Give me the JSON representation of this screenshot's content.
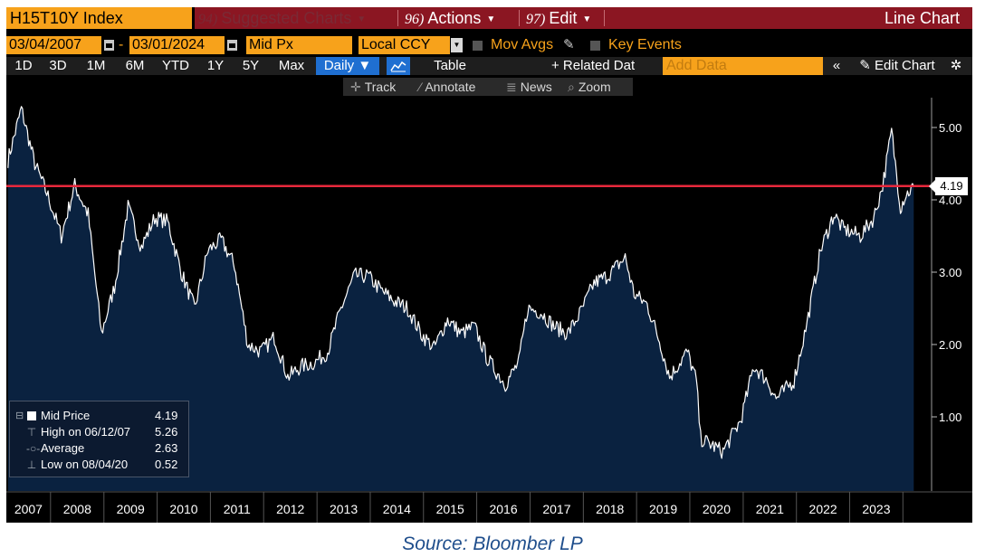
{
  "toolbar": {
    "ticker": "H15T10Y Index",
    "menus": [
      {
        "num": "94)",
        "label": "Suggested Charts",
        "color": "#7a2a35"
      },
      {
        "num": "96)",
        "label": "Actions",
        "color": "#ffffff"
      },
      {
        "num": "97)",
        "label": "Edit",
        "color": "#ffffff"
      }
    ],
    "chart_type": "Line Chart"
  },
  "settings": {
    "start_date": "03/04/2007",
    "dash": "-",
    "end_date": "03/01/2024",
    "field": "Mid Px",
    "currency": "Local CCY",
    "mov_avgs": "Mov Avgs",
    "key_events": "Key Events"
  },
  "periods": [
    "1D",
    "3D",
    "1M",
    "6M",
    "YTD",
    "1Y",
    "5Y",
    "Max"
  ],
  "frequency": "Daily ▼",
  "table_label": "Table",
  "related_data": "+ Related Dat",
  "add_data_placeholder": "Add Data",
  "collapse": "«",
  "edit_chart": "Edit Chart",
  "gear": "✲",
  "tools": [
    {
      "icon": "✛",
      "label": "Track"
    },
    {
      "icon": "⁄",
      "label": "Annotate"
    },
    {
      "icon": "≣",
      "label": "News"
    },
    {
      "icon": "⌕",
      "label": "Zoom"
    }
  ],
  "legend": {
    "mid_label": "Mid Price",
    "mid_value": "4.19",
    "high_label": "High on 06/12/07",
    "high_value": "5.26",
    "avg_label": "Average",
    "avg_value": "2.63",
    "low_label": "Low on 08/04/20",
    "low_value": "0.52"
  },
  "last_price_tag": "4.19",
  "source": "Source: Bloomber LP",
  "colors": {
    "accent_orange": "#f7a21b",
    "menu_red": "#8b1622",
    "area_fill": "#0a2240",
    "current_line": "#e8283c",
    "daily_blue": "#1f6fd1"
  },
  "chart_data": {
    "type": "area",
    "title": "",
    "xlabel": "",
    "ylabel": "",
    "y_axis_side": "right",
    "ylim": [
      0.0,
      5.5
    ],
    "y_ticks": [
      "1.00",
      "2.00",
      "3.00",
      "4.00",
      "5.00"
    ],
    "x_tick_labels": [
      "2007",
      "2008",
      "2009",
      "2010",
      "2011",
      "2012",
      "2013",
      "2014",
      "2015",
      "2016",
      "2017",
      "2018",
      "2019",
      "2020",
      "2021",
      "2022",
      "2023"
    ],
    "x_range": [
      "2007-03-04",
      "2024-03-01"
    ],
    "reference_line": 4.19,
    "series": [
      {
        "name": "Mid Price",
        "x": [
          "2007-03",
          "2007-06",
          "2007-09",
          "2007-12",
          "2008-03",
          "2008-06",
          "2008-09",
          "2008-12",
          "2009-03",
          "2009-06",
          "2009-09",
          "2009-12",
          "2010-03",
          "2010-06",
          "2010-09",
          "2010-12",
          "2011-03",
          "2011-06",
          "2011-09",
          "2011-12",
          "2012-03",
          "2012-06",
          "2012-09",
          "2012-12",
          "2013-03",
          "2013-06",
          "2013-09",
          "2013-12",
          "2014-03",
          "2014-06",
          "2014-09",
          "2014-12",
          "2015-03",
          "2015-06",
          "2015-09",
          "2015-12",
          "2016-03",
          "2016-07",
          "2016-10",
          "2016-12",
          "2017-03",
          "2017-06",
          "2017-09",
          "2017-12",
          "2018-03",
          "2018-06",
          "2018-10",
          "2018-12",
          "2019-03",
          "2019-06",
          "2019-08",
          "2019-12",
          "2020-02",
          "2020-03",
          "2020-08",
          "2020-12",
          "2021-03",
          "2021-06",
          "2021-08",
          "2021-12",
          "2022-03",
          "2022-06",
          "2022-09",
          "2022-11",
          "2023-03",
          "2023-06",
          "2023-08",
          "2023-10",
          "2023-12",
          "2024-01",
          "2024-03"
        ],
        "y": [
          4.55,
          5.26,
          4.5,
          4.05,
          3.5,
          4.2,
          3.8,
          2.15,
          2.8,
          3.9,
          3.35,
          3.75,
          3.7,
          3.0,
          2.5,
          3.3,
          3.45,
          3.1,
          2.0,
          1.9,
          2.1,
          1.55,
          1.7,
          1.75,
          1.9,
          2.5,
          2.95,
          2.95,
          2.75,
          2.6,
          2.5,
          2.15,
          1.95,
          2.35,
          2.15,
          2.25,
          1.8,
          1.45,
          1.75,
          2.5,
          2.45,
          2.25,
          2.15,
          2.45,
          2.85,
          2.95,
          3.2,
          2.7,
          2.55,
          2.0,
          1.55,
          1.9,
          1.5,
          0.7,
          0.52,
          0.95,
          1.7,
          1.5,
          1.25,
          1.5,
          2.3,
          3.3,
          3.8,
          3.6,
          3.5,
          3.75,
          4.2,
          4.95,
          3.9,
          4.05,
          4.19
        ]
      }
    ]
  }
}
